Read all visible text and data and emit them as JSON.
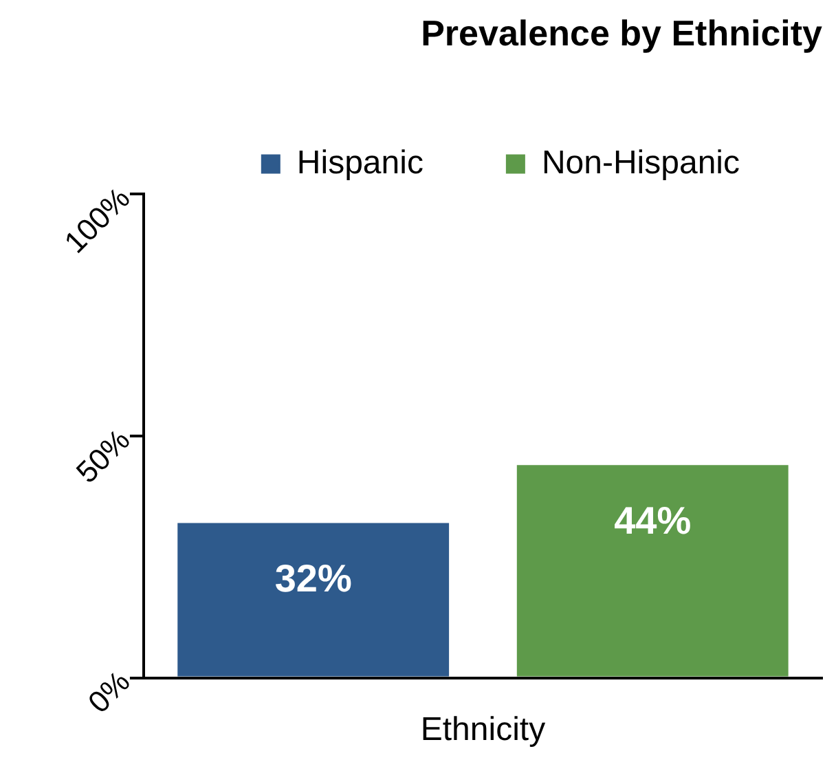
{
  "chart_data": {
    "type": "bar",
    "title": "Prevalence by Ethnicity",
    "xlabel": "Ethnicity",
    "categories": [
      null
    ],
    "series": [
      {
        "name": "Hispanic",
        "color": "#2e5a8c",
        "values": [
          32
        ],
        "value_labels": [
          "32%"
        ]
      },
      {
        "name": "Non-Hispanic",
        "color": "#5e9a4a",
        "values": [
          44
        ],
        "value_labels": [
          "44%"
        ]
      }
    ],
    "ylim": [
      0,
      100
    ],
    "yticks": [
      {
        "value": 0,
        "label": "0%"
      },
      {
        "value": 50,
        "label": "50%"
      },
      {
        "value": 100,
        "label": "100%"
      }
    ],
    "grid": false,
    "legend": "top"
  }
}
